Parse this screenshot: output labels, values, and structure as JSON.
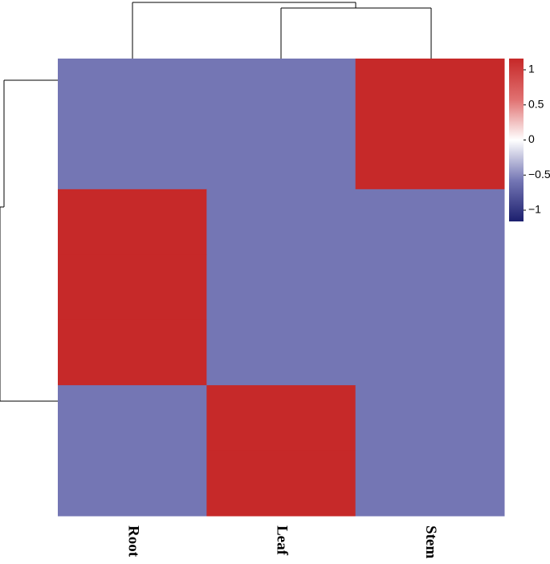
{
  "chart_data": {
    "type": "heatmap",
    "columns": [
      "Root",
      "Leaf",
      "Stem"
    ],
    "values": [
      [
        -0.58,
        -0.58,
        1.15
      ],
      [
        -0.58,
        -0.58,
        1.15
      ],
      [
        1.15,
        -0.58,
        -0.58
      ],
      [
        1.15,
        -0.58,
        -0.58
      ],
      [
        1.15,
        -0.58,
        -0.58
      ],
      [
        -0.58,
        1.15,
        -0.58
      ],
      [
        -0.58,
        1.15,
        -0.58
      ]
    ],
    "zlim": [
      -1.16,
      1.16
    ],
    "zticks": [
      1,
      0.5,
      0,
      {
        "value": -0.5,
        "label": "−0.5"
      },
      {
        "value": -1,
        "label": "−1"
      }
    ],
    "colors": [
      "#1c1f6e",
      "#7476b4",
      "#ffffff",
      "#e07070",
      "#c62828"
    ]
  }
}
